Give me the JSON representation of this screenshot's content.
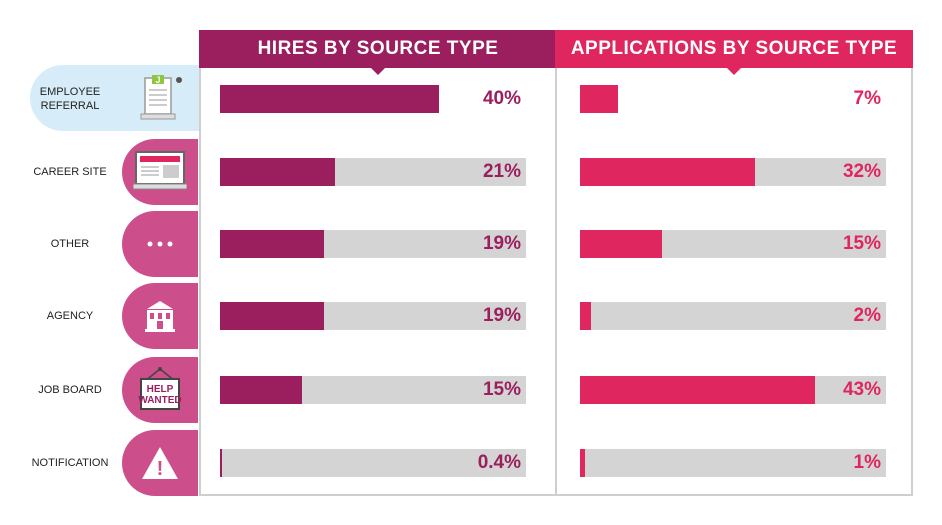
{
  "chart_data": {
    "type": "bar",
    "categories": [
      "EMPLOYEE REFERRAL",
      "CAREER SITE",
      "OTHER",
      "AGENCY",
      "JOB BOARD",
      "NOTIFICATION"
    ],
    "series": [
      {
        "name": "HIRES BY SOURCE TYPE",
        "values": [
          40,
          21,
          19,
          19,
          15,
          0.4
        ],
        "labels": [
          "40%",
          "21%",
          "19%",
          "19%",
          "15%",
          "0.4%"
        ],
        "color": "#9b1f5e"
      },
      {
        "name": "APPLICATIONS BY SOURCE TYPE",
        "values": [
          7,
          32,
          15,
          2,
          43,
          1
        ],
        "labels": [
          "7%",
          "32%",
          "15%",
          "2%",
          "43%",
          "1%"
        ],
        "color": "#e0265e"
      }
    ],
    "icons": [
      "job-application-icon",
      "computer-monitor-icon",
      "ellipsis-icon",
      "building-icon",
      "help-wanted-sign-icon",
      "warning-icon"
    ],
    "icon_text": {
      "application_letter": "J",
      "sign_line1": "HELP",
      "sign_line2": "WANTED",
      "warning_mark": "!"
    },
    "highlighted_category": "EMPLOYEE REFERRAL",
    "colors": {
      "highlight": "#d6ecf8",
      "icon_tab": "#cc4f8c",
      "track": "#d4d4d4"
    }
  }
}
